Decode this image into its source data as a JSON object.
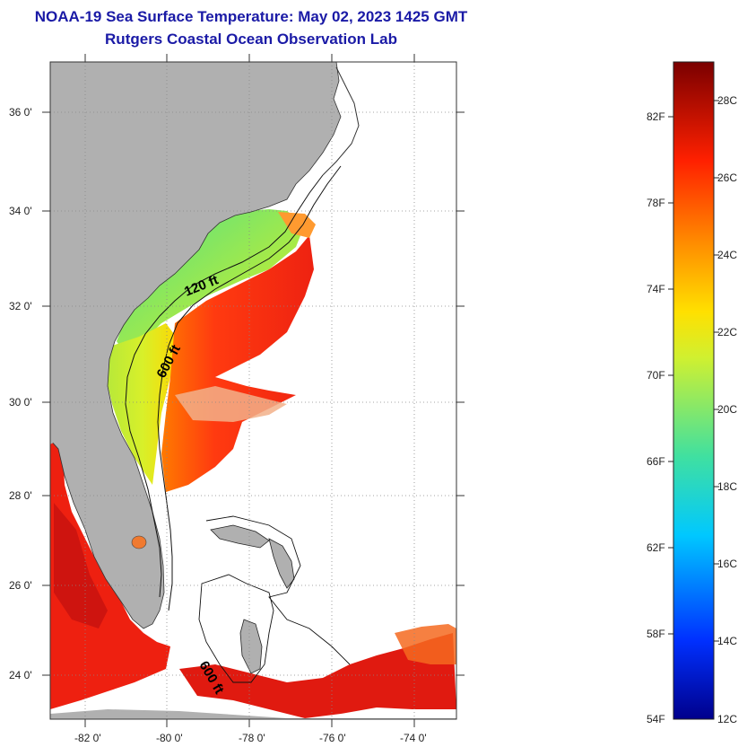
{
  "header": {
    "title": "NOAA-19 Sea Surface Temperature:  May 02, 2023 1425 GMT",
    "subtitle": "Rutgers Coastal Ocean Observation Lab"
  },
  "map": {
    "lon_range": [
      -83,
      -73
    ],
    "lat_range": [
      23,
      37
    ],
    "lon_ticks": [
      "-82 0'",
      "-80 0'",
      "-78 0'",
      "-76 0'",
      "-74 0'"
    ],
    "lat_ticks": [
      "24 0'",
      "26 0'",
      "28 0'",
      "30 0'",
      "32 0'",
      "34 0'",
      "36 0'"
    ],
    "contour_labels": [
      "120 ft",
      "600 ft",
      "600 ft"
    ],
    "colors": {
      "land": "#b0b0b0",
      "ocean": "#ffffff",
      "grid": "#888888"
    }
  },
  "colorbar": {
    "fahrenheit_labels": [
      "82F",
      "78F",
      "74F",
      "70F",
      "66F",
      "62F",
      "58F",
      "54F"
    ],
    "celsius_labels": [
      "28C",
      "26C",
      "24C",
      "22C",
      "20C",
      "18C",
      "16C",
      "14C",
      "12C"
    ],
    "range_c": [
      12,
      29
    ]
  }
}
